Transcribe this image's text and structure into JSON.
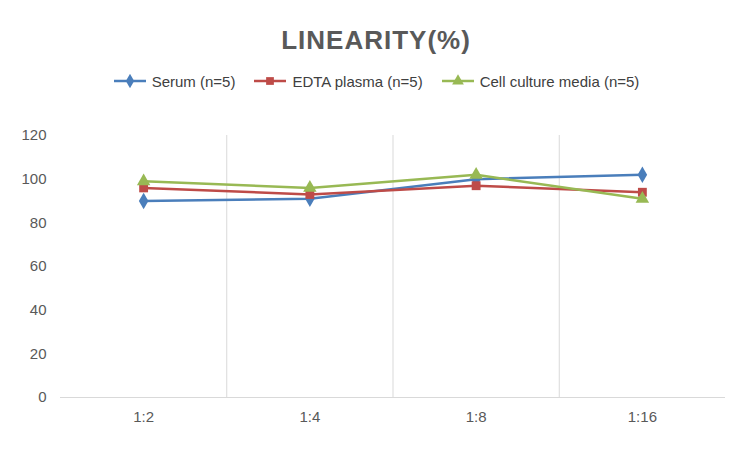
{
  "chart_data": {
    "type": "line",
    "title": "LINEARITY(%)",
    "categories": [
      "1:2",
      "1:4",
      "1:8",
      "1:16"
    ],
    "series": [
      {
        "name": "Serum (n=5)",
        "color": "#4a7ebb",
        "marker": "diamond",
        "values": [
          90,
          91,
          100,
          102
        ]
      },
      {
        "name": "EDTA plasma (n=5)",
        "color": "#be4b48",
        "marker": "square",
        "values": [
          96,
          93,
          97,
          94
        ]
      },
      {
        "name": "Cell culture media (n=5)",
        "color": "#98b954",
        "marker": "triangle",
        "values": [
          99,
          96,
          102,
          91
        ]
      }
    ],
    "ylim": [
      0,
      120
    ],
    "yticks": [
      0,
      20,
      40,
      60,
      80,
      100,
      120
    ],
    "grid": true,
    "legend": "top"
  }
}
